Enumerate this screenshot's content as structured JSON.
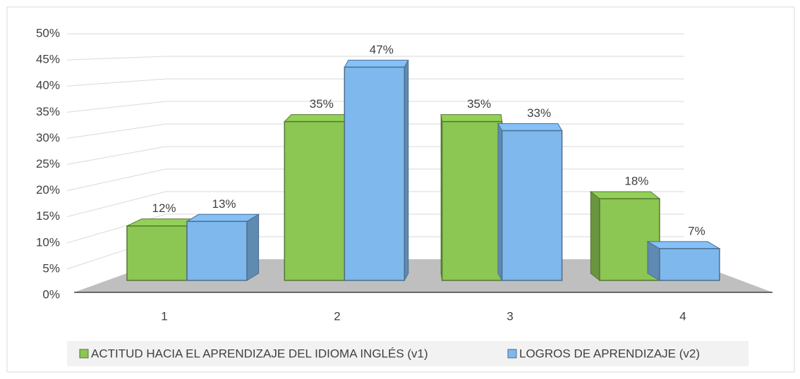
{
  "chart_data": {
    "type": "bar3d",
    "categories": [
      "1",
      "2",
      "3",
      "4"
    ],
    "series": [
      {
        "name": "ACTITUD HACIA EL APRENDIZAJE DEL IDIOMA INGLÉS (v1)",
        "color": "#8cc653",
        "values": [
          12,
          35,
          35,
          18
        ],
        "value_labels": [
          "12%",
          "35%",
          "35%",
          "18%"
        ]
      },
      {
        "name": "LOGROS DE APRENDIZAJE (v2)",
        "color": "#7eb8ec",
        "values": [
          13,
          47,
          33,
          7
        ],
        "value_labels": [
          "13%",
          "47%",
          "33%",
          "7%"
        ]
      }
    ],
    "ylim": [
      0,
      50
    ],
    "yticks": [
      {
        "value": 0,
        "label": "0%"
      },
      {
        "value": 5,
        "label": "5%"
      },
      {
        "value": 10,
        "label": "10%"
      },
      {
        "value": 15,
        "label": "15%"
      },
      {
        "value": 20,
        "label": "20%"
      },
      {
        "value": 25,
        "label": "25%"
      },
      {
        "value": 30,
        "label": "30%"
      },
      {
        "value": 35,
        "label": "35%"
      },
      {
        "value": 40,
        "label": "40%"
      },
      {
        "value": 45,
        "label": "45%"
      },
      {
        "value": 50,
        "label": "50%"
      }
    ],
    "grid": true,
    "legend": "bottom"
  }
}
